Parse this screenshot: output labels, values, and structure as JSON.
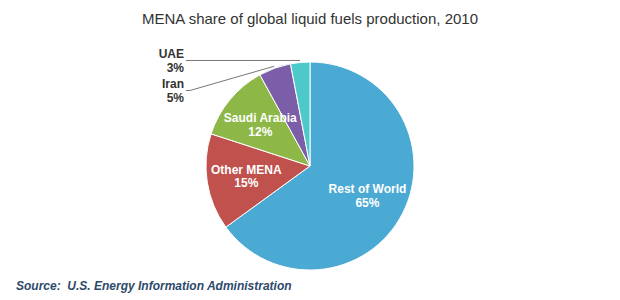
{
  "chart_data": {
    "type": "pie",
    "title": "MENA share of global liquid fuels production, 2010",
    "annotations": [
      "Source:  U.S. Energy Information Administration"
    ],
    "categories": [
      "Rest of World",
      "Other MENA",
      "Saudi Arabia",
      "Iran",
      "UAE"
    ],
    "values": [
      65,
      15,
      12,
      5,
      3
    ],
    "value_labels": [
      "65%",
      "15%",
      "12%",
      "5%",
      "3%"
    ],
    "colors": [
      "#4baad3",
      "#c0514d",
      "#8db848",
      "#7b5ea7",
      "#4ec9c9"
    ],
    "data_labels": true
  }
}
